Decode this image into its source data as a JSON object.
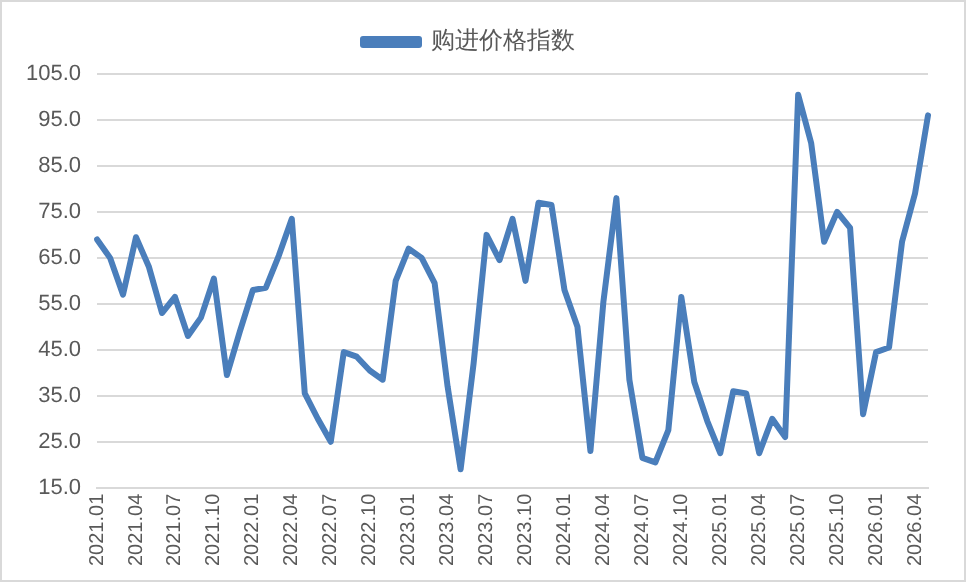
{
  "chart_data": {
    "type": "line",
    "categories": [
      "2021.01",
      null,
      null,
      "2021.04",
      null,
      null,
      "2021.07",
      null,
      null,
      "2021.10",
      null,
      null,
      "2022.01",
      null,
      null,
      "2022.04",
      null,
      null,
      "2022.07",
      null,
      null,
      "2022.10",
      null,
      null,
      "2023.01",
      null,
      null,
      "2023.04",
      null,
      null,
      "2023.07",
      null,
      null,
      "2023.10",
      null,
      null,
      "2024.01",
      null,
      null,
      "2024.04",
      null,
      null,
      "2024.07",
      null,
      null,
      "2024.10",
      null,
      null,
      "2025.01",
      null,
      null,
      "2025.04",
      null,
      null,
      "2025.07",
      null,
      null,
      "2025.10",
      null,
      null,
      "2026.01",
      null,
      null,
      "2026.04",
      null
    ],
    "series": [
      {
        "name": "购进价格指数",
        "color": "#4a7ebb",
        "values": [
          69,
          65,
          57,
          69.5,
          63,
          53,
          56.5,
          48,
          52,
          60.5,
          39.5,
          49,
          58,
          58.5,
          65.5,
          73.5,
          35.5,
          30,
          25,
          44.5,
          43.5,
          40.5,
          38.5,
          60,
          67,
          65,
          59.5,
          37,
          19,
          42,
          70,
          64.5,
          73.5,
          60,
          77,
          76.5,
          58,
          50,
          23,
          55.5,
          78,
          38.5,
          21.5,
          20.5,
          27.5,
          56.5,
          38,
          29.5,
          22.5,
          36,
          35.5,
          22.5,
          30,
          26,
          100.5,
          90,
          68.5,
          75,
          71.5,
          31,
          44.5,
          45.5,
          68.5,
          79,
          96
        ]
      }
    ],
    "ylim": [
      15,
      105
    ],
    "yticks": [
      {
        "value": 15,
        "label": "15.0"
      },
      {
        "value": 25,
        "label": "25.0"
      },
      {
        "value": 35,
        "label": "35.0"
      },
      {
        "value": 45,
        "label": "45.0"
      },
      {
        "value": 55,
        "label": "55.0"
      },
      {
        "value": 65,
        "label": "65.0"
      },
      {
        "value": 75,
        "label": "75.0"
      },
      {
        "value": 85,
        "label": "85.0"
      },
      {
        "value": 95,
        "label": "95.0"
      },
      {
        "value": 105,
        "label": "105.0"
      }
    ],
    "grid": "y",
    "legend": "top",
    "marker": "none",
    "line_style": "solid"
  }
}
